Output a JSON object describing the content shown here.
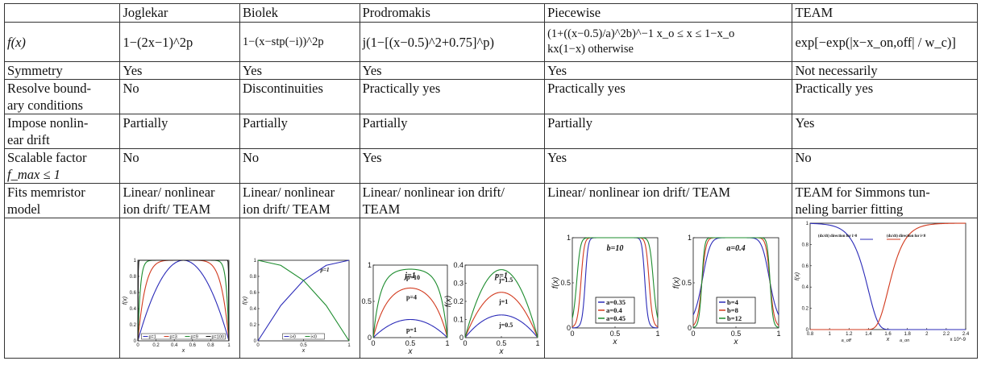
{
  "headers": [
    "",
    "Joglekar",
    "Biolek",
    "Prodromakis",
    "Piecewise",
    "TEAM"
  ],
  "formulas": {
    "row_label": "f(x)",
    "joglekar": "1−(2x−1)^2p",
    "biolek": "1−(x−stp(−i))^2p",
    "prodromakis": "j(1−[(x−0.5)^2+0.75]^p)",
    "piecewise_case1": "(1+((x−0.5)/a)^2b)^−1   x_o ≤ x ≤ 1−x_o",
    "piecewise_case2": "kx(1−x)   otherwise",
    "team": "exp[−exp(|x−x_on,off| / w_c)]"
  },
  "rows": [
    {
      "label": "Symmetry",
      "cells": [
        "Yes",
        "Yes",
        "Yes",
        "Yes",
        "Not necessarily"
      ]
    },
    {
      "label_lines": [
        "Resolve bound-",
        "ary conditions"
      ],
      "cells": [
        "No",
        "Discontinuities",
        "Practically yes",
        "Practically yes",
        "Practically yes"
      ]
    },
    {
      "label_lines": [
        "Impose nonlin-",
        "ear drift"
      ],
      "cells": [
        "Partially",
        "Partially",
        "Partially",
        "Partially",
        "Yes"
      ]
    },
    {
      "label_lines": [
        "Scalable factor",
        "f_max ≤ 1"
      ],
      "cells": [
        "No",
        "No",
        "Yes",
        "Yes",
        "No"
      ]
    },
    {
      "label_lines": [
        "Fits memristor",
        "model"
      ],
      "cells_lines": [
        [
          "Linear/ nonlinear",
          "ion drift/ TEAM"
        ],
        [
          "Linear/ nonlinear",
          "ion drift/ TEAM"
        ],
        [
          "Linear/ nonlinear ion drift/",
          "TEAM"
        ],
        [
          "Linear/ nonlinear ion drift/ TEAM",
          ""
        ],
        [
          "TEAM for Simmons tun-",
          "neling barrier fitting"
        ]
      ]
    }
  ],
  "chart_data": [
    {
      "type": "line",
      "cell": "Joglekar",
      "xlabel": "x",
      "ylabel": "f(x)",
      "xlim": [
        0,
        1
      ],
      "ylim": [
        0,
        1
      ],
      "xticks": [
        "0",
        "0.2",
        "0.4",
        "0.6",
        "0.8",
        "1"
      ],
      "yticks": [
        "0",
        "0.2",
        "0.4",
        "0.6",
        "0.8",
        "1"
      ],
      "legend": "bottom",
      "series": [
        {
          "name": "p=1",
          "color": "#2b2bb8",
          "p": 1
        },
        {
          "name": "p=3",
          "color": "#d23a1e",
          "p": 3
        },
        {
          "name": "p=9",
          "color": "#1d8c2e",
          "p": 9
        },
        {
          "name": "p=100",
          "color": "#111111",
          "p": 100
        }
      ]
    },
    {
      "type": "line",
      "cell": "Biolek",
      "title": "p=1",
      "xlabel": "x",
      "ylabel": "f(x)",
      "xlim": [
        0,
        1
      ],
      "ylim": [
        0,
        1
      ],
      "xticks": [
        "0",
        "0.5",
        "1"
      ],
      "yticks": [
        "0",
        "0.2",
        "0.4",
        "0.6",
        "0.8",
        "1"
      ],
      "legend": "bottom",
      "series": [
        {
          "name": "i>0",
          "color": "#2b2bb8",
          "x": [
            0,
            0.25,
            0.5,
            0.75,
            1
          ],
          "y": [
            0,
            0.4375,
            0.75,
            0.9375,
            1
          ]
        },
        {
          "name": "i<0",
          "color": "#1d8c2e",
          "x": [
            0,
            0.25,
            0.5,
            0.75,
            1
          ],
          "y": [
            1,
            0.9375,
            0.75,
            0.4375,
            0
          ]
        }
      ]
    },
    {
      "type": "line",
      "cell": "Prodromakis-1",
      "title": "j=1",
      "xlabel": "x",
      "ylabel": "f(x)",
      "xlim": [
        0,
        1
      ],
      "ylim": [
        0,
        1
      ],
      "xticks": [
        "0",
        "0.5",
        "1"
      ],
      "yticks": [
        "0",
        "0.5",
        "1"
      ],
      "series": [
        {
          "name": "p=1",
          "color": "#2b2bb8",
          "j": 1,
          "p": 1
        },
        {
          "name": "p=4",
          "color": "#d23a1e",
          "j": 1,
          "p": 4
        },
        {
          "name": "p=10",
          "color": "#1d8c2e",
          "j": 1,
          "p": 10
        }
      ]
    },
    {
      "type": "line",
      "cell": "Prodromakis-2",
      "title": "p=1",
      "xlabel": "x",
      "ylabel": "f(x)",
      "xlim": [
        0,
        1
      ],
      "ylim": [
        0,
        0.4
      ],
      "xticks": [
        "0",
        "0.5",
        "1"
      ],
      "yticks": [
        "0",
        "0.1",
        "0.2",
        "0.3",
        "0.4"
      ],
      "series": [
        {
          "name": "j=0.5",
          "color": "#2b2bb8",
          "j": 0.5,
          "p": 1
        },
        {
          "name": "j=1",
          "color": "#d23a1e",
          "j": 1,
          "p": 1
        },
        {
          "name": "j=1.5",
          "color": "#1d8c2e",
          "j": 1.5,
          "p": 1
        }
      ]
    },
    {
      "type": "line",
      "cell": "Piecewise-1",
      "title": "b=10",
      "xlabel": "x",
      "ylabel": "f(x)",
      "xlim": [
        0,
        1
      ],
      "ylim": [
        0,
        1
      ],
      "xticks": [
        "0",
        "0.5",
        "1"
      ],
      "yticks": [
        "0",
        "0.5",
        "1"
      ],
      "legend": "bottom-center",
      "series": [
        {
          "name": "a=0.35",
          "color": "#2b2bb8",
          "a": 0.35,
          "b": 10
        },
        {
          "name": "a=0.4",
          "color": "#d23a1e",
          "a": 0.4,
          "b": 10
        },
        {
          "name": "a=0.45",
          "color": "#1d8c2e",
          "a": 0.45,
          "b": 10
        }
      ]
    },
    {
      "type": "line",
      "cell": "Piecewise-2",
      "title": "a=0.4",
      "xlabel": "x",
      "ylabel": "f(x)",
      "xlim": [
        0,
        1
      ],
      "ylim": [
        0,
        1
      ],
      "xticks": [
        "0",
        "0.5",
        "1"
      ],
      "yticks": [
        "0",
        "0.5",
        "1"
      ],
      "legend": "bottom-center",
      "series": [
        {
          "name": "b=4",
          "color": "#2b2bb8",
          "a": 0.4,
          "b": 4
        },
        {
          "name": "b=8",
          "color": "#d23a1e",
          "a": 0.4,
          "b": 8
        },
        {
          "name": "b=12",
          "color": "#1d8c2e",
          "a": 0.4,
          "b": 12
        }
      ]
    },
    {
      "type": "line",
      "cell": "TEAM",
      "xlabel": "x",
      "ylabel": "f(x)",
      "xlim": [
        0.8,
        2.4
      ],
      "ylim": [
        0,
        1
      ],
      "x_exponent": "x 10^-9",
      "xticks": [
        "0.8",
        "1",
        "1.2",
        "1.4",
        "1.6",
        "1.8",
        "2",
        "2.2",
        "2.4"
      ],
      "yticks": [
        "0",
        "0.2",
        "0.4",
        "0.6",
        "0.8",
        "1"
      ],
      "axis_marks": [
        "a_off",
        "a_on"
      ],
      "annotations": [
        "(dx/dt) direction for i>0",
        "(dx/dt) direction for i<0"
      ],
      "series": [
        {
          "name": "f_off",
          "color": "#2b2bb8",
          "x_off": 1.4,
          "w_c": 0.1
        },
        {
          "name": "f_on",
          "color": "#d23a1e",
          "x_on": 1.6,
          "w_c": 0.1
        }
      ]
    }
  ]
}
